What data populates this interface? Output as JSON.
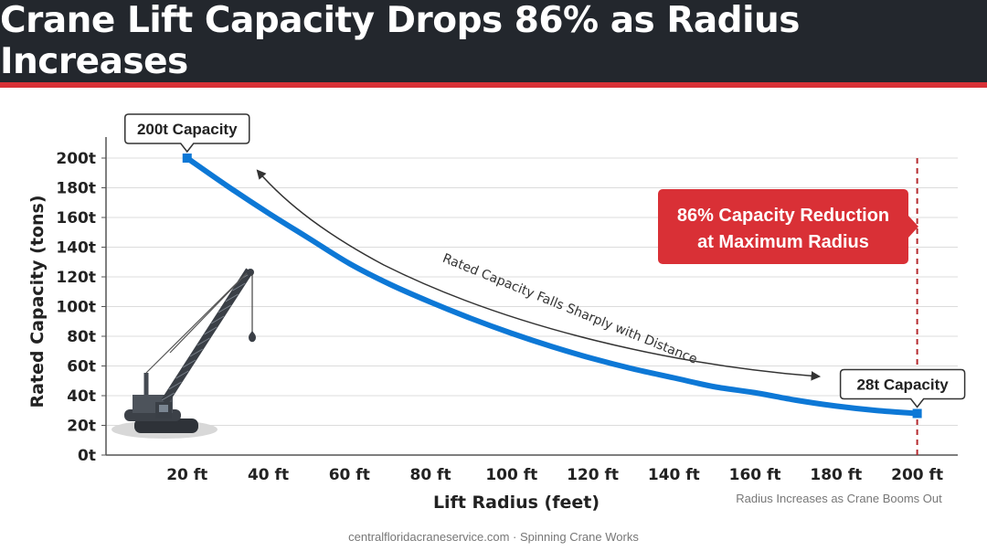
{
  "header": {
    "title": "Crane Lift Capacity Drops 86% as Radius Increases"
  },
  "footer": {
    "credit": "centralfloridacraneservice.com · Spinning Crane Works"
  },
  "colors": {
    "header_bg": "#23272d",
    "accent_red": "#d93036",
    "line_blue": "#0d78d6"
  },
  "chart_data": {
    "type": "line",
    "xlabel": "Lift Radius (feet)",
    "ylabel": "Rated Capacity (tons)",
    "x_note": "Radius Increases as Crane Booms Out",
    "x_ticks": [
      "20 ft",
      "40 ft",
      "60 ft",
      "80 ft",
      "100 ft",
      "120 ft",
      "140 ft",
      "160 ft",
      "180 ft",
      "200 ft"
    ],
    "x_tick_values": [
      20,
      40,
      60,
      80,
      100,
      120,
      140,
      160,
      180,
      200
    ],
    "y_ticks": [
      "0t",
      "20t",
      "40t",
      "60t",
      "80t",
      "100t",
      "120t",
      "140t",
      "160t",
      "180t",
      "200t"
    ],
    "y_tick_values": [
      0,
      20,
      40,
      60,
      80,
      100,
      120,
      140,
      160,
      180,
      200
    ],
    "xlim": [
      0,
      210
    ],
    "ylim": [
      0,
      200
    ],
    "grid": true,
    "series": [
      {
        "x": [
          20,
          30,
          40,
          50,
          60,
          70,
          80,
          90,
          100,
          110,
          120,
          130,
          140,
          150,
          160,
          170,
          180,
          190,
          200
        ],
        "values": [
          200,
          181,
          163,
          146,
          129,
          115,
          103,
          92,
          82,
          73,
          65,
          58,
          52,
          46,
          42,
          37,
          33,
          30,
          28
        ]
      }
    ],
    "point_labels": [
      {
        "x": 20,
        "y": 200,
        "text": "200t Capacity"
      },
      {
        "x": 200,
        "y": 28,
        "text": "28t Capacity"
      }
    ],
    "annotations": {
      "trend_text": "Rated Capacity Falls Sharply with Distance",
      "reduction_line1": "86% Capacity Reduction",
      "reduction_line2": "at Maximum Radius",
      "max_radius_x": 200
    }
  }
}
